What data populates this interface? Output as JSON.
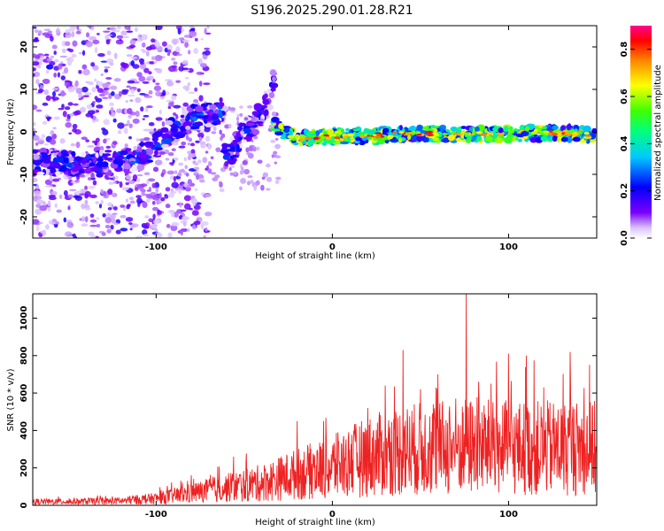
{
  "figure_title": "S196.2025.290.01.28.R21",
  "chart_data": [
    {
      "type": "heatmap",
      "title": "",
      "xlabel": "Height of straight line (km)",
      "ylabel": "Frequency (Hz)",
      "xlim": [
        -170,
        150
      ],
      "ylim": [
        -25,
        25
      ],
      "x_ticks": [
        -100,
        0,
        100
      ],
      "y_ticks": [
        -20,
        -10,
        0,
        10,
        20
      ],
      "colorbar": {
        "label": "Normalized spectral amplitude",
        "range": [
          0.0,
          0.9
        ],
        "ticks": [
          0.0,
          0.2,
          0.4,
          0.6,
          0.8
        ],
        "colors": [
          "#ffffff",
          "#c79bff",
          "#6a00ff",
          "#0000ff",
          "#00c0ff",
          "#00ff80",
          "#40ff00",
          "#ffff00",
          "#ff8000",
          "#ff0000",
          "#ff00a0"
        ]
      },
      "noise_region": {
        "x": [
          -170,
          -90
        ],
        "y": [
          -25,
          25
        ],
        "amplitude": 0.12
      },
      "ridges": [
        {
          "name": "",
          "x": [
            -170,
            -140,
            -110,
            -95,
            -90,
            -80,
            -70,
            -62
          ],
          "y": [
            -7,
            -8,
            -6,
            -2,
            1,
            3,
            4,
            5
          ],
          "amplitude": 0.35
        },
        {
          "name": "",
          "x": [
            -62,
            -56,
            -50,
            -44,
            -40,
            -36,
            -33
          ],
          "y": [
            -6,
            -4,
            0,
            2,
            5,
            8,
            12
          ],
          "amplitude": 0.3
        },
        {
          "name": "",
          "x": [
            -33,
            -28,
            -20,
            -10,
            0,
            20,
            40,
            60,
            80,
            100,
            120,
            140,
            150
          ],
          "y": [
            2,
            0,
            -1.5,
            -1.5,
            -1,
            -1,
            -0.5,
            -0.5,
            -0.5,
            -0.5,
            -0.3,
            -0.3,
            -1
          ],
          "amplitude": 0.8
        }
      ]
    },
    {
      "type": "line",
      "title": "",
      "xlabel": "Height of straight line (km)",
      "ylabel": "SNR (10 * v/v)",
      "xlim": [
        -170,
        150
      ],
      "ylim": [
        0,
        1130
      ],
      "x_ticks": [
        -100,
        0,
        100
      ],
      "y_ticks": [
        0,
        200,
        400,
        600,
        800,
        1000
      ],
      "color": "#ee2222",
      "series": [
        {
          "name": "",
          "envelope_x": [
            -170,
            -120,
            -100,
            -80,
            -60,
            -40,
            -20,
            0,
            20,
            40,
            60,
            80,
            100,
            120,
            150
          ],
          "envelope_y": [
            20,
            25,
            40,
            70,
            100,
            130,
            180,
            220,
            280,
            320,
            330,
            340,
            330,
            330,
            330
          ],
          "peaks": [
            [
              -80,
              160
            ],
            [
              -56,
              260
            ],
            [
              -20,
              450
            ],
            [
              -5,
              450
            ],
            [
              20,
              520
            ],
            [
              30,
              640
            ],
            [
              40,
              830
            ],
            [
              50,
              620
            ],
            [
              60,
              700
            ],
            [
              70,
              570
            ],
            [
              76,
              1130
            ],
            [
              90,
              650
            ],
            [
              100,
              810
            ],
            [
              110,
              800
            ],
            [
              120,
              630
            ],
            [
              135,
              820
            ],
            [
              146,
              750
            ]
          ]
        }
      ]
    }
  ]
}
